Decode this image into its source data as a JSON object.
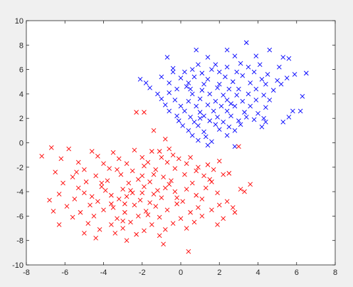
{
  "chart_data": {
    "type": "scatter",
    "title": "",
    "xlabel": "",
    "ylabel": "",
    "xlim": [
      -8,
      8
    ],
    "ylim": [
      -10,
      10
    ],
    "xticks": [
      -8,
      -6,
      -4,
      -2,
      0,
      2,
      4,
      6,
      8
    ],
    "yticks": [
      -10,
      -8,
      -6,
      -4,
      -2,
      0,
      2,
      4,
      6,
      8,
      10
    ],
    "grid": false,
    "legend": "none",
    "marker": "x",
    "series": [
      {
        "color": "#0000ff",
        "points": [
          [
            3.4,
            8.2
          ],
          [
            2.4,
            7.6
          ],
          [
            0.8,
            7.6
          ],
          [
            4.6,
            7.6
          ],
          [
            -0.7,
            7.0
          ],
          [
            1.4,
            7.0
          ],
          [
            2.8,
            7.1
          ],
          [
            3.9,
            7.1
          ],
          [
            5.3,
            7.0
          ],
          [
            5.6,
            6.9
          ],
          [
            0.9,
            6.4
          ],
          [
            1.8,
            6.4
          ],
          [
            3.1,
            6.5
          ],
          [
            4.1,
            6.4
          ],
          [
            -0.4,
            6.1
          ],
          [
            0.6,
            6.0
          ],
          [
            1.6,
            6.0
          ],
          [
            2.4,
            6.2
          ],
          [
            3.5,
            6.2
          ],
          [
            5.1,
            6.2
          ],
          [
            0.2,
            5.8
          ],
          [
            1.1,
            5.7
          ],
          [
            2.0,
            5.8
          ],
          [
            2.9,
            5.8
          ],
          [
            3.8,
            5.8
          ],
          [
            4.5,
            5.6
          ],
          [
            5.9,
            5.6
          ],
          [
            6.5,
            5.7
          ],
          [
            -2.1,
            5.2
          ],
          [
            -1.0,
            5.4
          ],
          [
            0.0,
            5.3
          ],
          [
            0.7,
            5.4
          ],
          [
            1.4,
            5.2
          ],
          [
            2.3,
            5.4
          ],
          [
            3.2,
            5.5
          ],
          [
            4.2,
            5.2
          ],
          [
            5.0,
            5.1
          ],
          [
            5.5,
            5.3
          ],
          [
            -1.8,
            4.9
          ],
          [
            -0.6,
            4.9
          ],
          [
            0.4,
            4.9
          ],
          [
            1.2,
            4.8
          ],
          [
            2.0,
            4.8
          ],
          [
            2.7,
            5.0
          ],
          [
            3.6,
            4.9
          ],
          [
            4.4,
            4.8
          ],
          [
            5.2,
            4.8
          ],
          [
            -1.6,
            4.5
          ],
          [
            -0.2,
            4.4
          ],
          [
            0.5,
            4.4
          ],
          [
            1.1,
            4.3
          ],
          [
            1.9,
            4.5
          ],
          [
            2.5,
            4.4
          ],
          [
            3.0,
            4.4
          ],
          [
            3.9,
            4.4
          ],
          [
            4.8,
            4.3
          ],
          [
            -1.2,
            4.0
          ],
          [
            -0.6,
            4.1
          ],
          [
            0.6,
            4.0
          ],
          [
            1.5,
            4.0
          ],
          [
            2.2,
            3.9
          ],
          [
            2.9,
            3.9
          ],
          [
            3.5,
            4.0
          ],
          [
            4.3,
            3.9
          ],
          [
            6.3,
            3.8
          ],
          [
            -1.0,
            3.6
          ],
          [
            -0.3,
            3.5
          ],
          [
            0.4,
            3.4
          ],
          [
            1.0,
            3.6
          ],
          [
            1.8,
            3.4
          ],
          [
            2.4,
            3.5
          ],
          [
            3.2,
            3.4
          ],
          [
            3.9,
            3.5
          ],
          [
            4.6,
            3.5
          ],
          [
            -0.8,
            3.1
          ],
          [
            0.0,
            3.0
          ],
          [
            0.8,
            3.0
          ],
          [
            1.4,
            3.1
          ],
          [
            2.1,
            3.0
          ],
          [
            2.8,
            3.0
          ],
          [
            3.6,
            3.0
          ],
          [
            4.4,
            2.9
          ],
          [
            -0.6,
            2.6
          ],
          [
            0.2,
            2.6
          ],
          [
            1.0,
            2.5
          ],
          [
            1.7,
            2.6
          ],
          [
            2.4,
            2.6
          ],
          [
            3.3,
            2.5
          ],
          [
            4.0,
            2.4
          ],
          [
            5.8,
            2.6
          ],
          [
            6.2,
            2.6
          ],
          [
            -0.2,
            2.2
          ],
          [
            0.5,
            2.1
          ],
          [
            1.2,
            2.2
          ],
          [
            1.9,
            2.1
          ],
          [
            2.6,
            2.2
          ],
          [
            3.4,
            2.1
          ],
          [
            4.3,
            2.0
          ],
          [
            5.6,
            2.1
          ],
          [
            -0.1,
            1.8
          ],
          [
            0.7,
            1.7
          ],
          [
            1.5,
            1.8
          ],
          [
            2.2,
            1.7
          ],
          [
            3.0,
            1.8
          ],
          [
            3.8,
            1.9
          ],
          [
            4.4,
            1.7
          ],
          [
            5.3,
            1.7
          ],
          [
            0.1,
            1.4
          ],
          [
            0.9,
            1.4
          ],
          [
            1.8,
            1.5
          ],
          [
            2.5,
            1.3
          ],
          [
            3.1,
            1.5
          ],
          [
            4.2,
            1.3
          ],
          [
            0.4,
            1.0
          ],
          [
            1.2,
            0.9
          ],
          [
            2.0,
            1.1
          ],
          [
            2.8,
            1.0
          ],
          [
            0.6,
            0.6
          ],
          [
            1.3,
            0.5
          ],
          [
            2.4,
            0.6
          ],
          [
            0.9,
            0.2
          ],
          [
            1.6,
            0.1
          ],
          [
            2.8,
            -0.3
          ],
          [
            1.4,
            -0.2
          ],
          [
            -0.4,
            5.8
          ],
          [
            0.3,
            4.6
          ],
          [
            2.6,
            3.2
          ],
          [
            1.0,
            2.0
          ]
        ]
      },
      {
        "color": "#ff0000",
        "points": [
          [
            -2.3,
            2.5
          ],
          [
            -1.9,
            2.5
          ],
          [
            -1.4,
            1.0
          ],
          [
            -0.8,
            0.3
          ],
          [
            -0.6,
            -0.5
          ],
          [
            -1.1,
            -0.7
          ],
          [
            -0.4,
            -1.0
          ],
          [
            3.0,
            -0.3
          ],
          [
            -6.7,
            -0.4
          ],
          [
            -5.8,
            -0.5
          ],
          [
            -4.6,
            -0.7
          ],
          [
            -3.5,
            -0.8
          ],
          [
            -2.4,
            -0.6
          ],
          [
            -1.5,
            -0.7
          ],
          [
            -6.2,
            -1.3
          ],
          [
            -4.3,
            -1.1
          ],
          [
            -3.2,
            -1.3
          ],
          [
            -2.0,
            -1.2
          ],
          [
            -1.0,
            -1.2
          ],
          [
            -0.1,
            -1.3
          ],
          [
            0.5,
            -1.2
          ],
          [
            -7.2,
            -1.1
          ],
          [
            -5.3,
            -1.6
          ],
          [
            -4.0,
            -1.7
          ],
          [
            -2.8,
            -1.7
          ],
          [
            -1.7,
            -1.6
          ],
          [
            -0.7,
            -1.6
          ],
          [
            0.3,
            -1.7
          ],
          [
            1.4,
            -1.8
          ],
          [
            2.0,
            -1.5
          ],
          [
            -6.5,
            -2.4
          ],
          [
            -5.0,
            -2.2
          ],
          [
            -3.7,
            -2.1
          ],
          [
            -2.5,
            -2.3
          ],
          [
            -1.3,
            -2.2
          ],
          [
            -0.3,
            -2.1
          ],
          [
            0.8,
            -2.3
          ],
          [
            1.7,
            -2.2
          ],
          [
            2.5,
            -2.5
          ],
          [
            -5.6,
            -2.8
          ],
          [
            -4.4,
            -2.7
          ],
          [
            -3.1,
            -2.6
          ],
          [
            -2.0,
            -2.7
          ],
          [
            -0.9,
            -2.8
          ],
          [
            0.2,
            -2.6
          ],
          [
            1.2,
            -2.7
          ],
          [
            2.2,
            -2.6
          ],
          [
            -6.1,
            -3.3
          ],
          [
            -4.9,
            -3.2
          ],
          [
            -3.8,
            -3.1
          ],
          [
            -2.7,
            -3.3
          ],
          [
            -1.6,
            -3.2
          ],
          [
            -0.5,
            -3.1
          ],
          [
            0.6,
            -3.3
          ],
          [
            1.6,
            -3.2
          ],
          [
            -5.3,
            -3.7
          ],
          [
            -4.1,
            -3.6
          ],
          [
            -3.0,
            -3.8
          ],
          [
            -1.9,
            -3.6
          ],
          [
            -0.8,
            -3.7
          ],
          [
            0.3,
            -3.8
          ],
          [
            1.3,
            -3.7
          ],
          [
            3.1,
            -3.8
          ],
          [
            3.6,
            -3.4
          ],
          [
            -6.3,
            -4.2
          ],
          [
            -5.0,
            -4.1
          ],
          [
            -3.6,
            -4.3
          ],
          [
            -2.5,
            -4.1
          ],
          [
            -1.4,
            -4.2
          ],
          [
            -0.3,
            -4.0
          ],
          [
            0.8,
            -4.3
          ],
          [
            1.9,
            -4.1
          ],
          [
            3.3,
            -4.0
          ],
          [
            -6.8,
            -4.7
          ],
          [
            -5.5,
            -4.6
          ],
          [
            -4.3,
            -4.8
          ],
          [
            -3.2,
            -4.6
          ],
          [
            -2.1,
            -4.7
          ],
          [
            -1.0,
            -4.5
          ],
          [
            0.1,
            -4.8
          ],
          [
            1.1,
            -4.6
          ],
          [
            2.4,
            -4.8
          ],
          [
            -5.9,
            -5.2
          ],
          [
            -4.7,
            -5.1
          ],
          [
            -3.5,
            -5.3
          ],
          [
            -2.4,
            -5.1
          ],
          [
            -1.3,
            -5.2
          ],
          [
            -0.2,
            -5.0
          ],
          [
            0.9,
            -5.3
          ],
          [
            2.0,
            -5.1
          ],
          [
            2.7,
            -5.3
          ],
          [
            -6.6,
            -5.6
          ],
          [
            -5.2,
            -5.7
          ],
          [
            -4.0,
            -5.5
          ],
          [
            -2.9,
            -5.7
          ],
          [
            -1.8,
            -5.6
          ],
          [
            -0.7,
            -5.5
          ],
          [
            0.5,
            -5.7
          ],
          [
            1.6,
            -5.5
          ],
          [
            2.8,
            -5.7
          ],
          [
            -5.6,
            -6.1
          ],
          [
            -4.5,
            -6.0
          ],
          [
            -3.3,
            -6.2
          ],
          [
            -2.2,
            -6.0
          ],
          [
            -1.1,
            -6.1
          ],
          [
            0.0,
            -6.2
          ],
          [
            1.1,
            -6.0
          ],
          [
            2.2,
            -6.2
          ],
          [
            -4.8,
            -6.6
          ],
          [
            -3.6,
            -6.7
          ],
          [
            -2.6,
            -6.5
          ],
          [
            -1.5,
            -6.7
          ],
          [
            -0.4,
            -6.6
          ],
          [
            0.7,
            -6.5
          ],
          [
            1.9,
            -6.7
          ],
          [
            -4.2,
            -7.1
          ],
          [
            -3.0,
            -7.0
          ],
          [
            -1.9,
            -7.2
          ],
          [
            -0.8,
            -7.1
          ],
          [
            0.3,
            -7.0
          ],
          [
            -3.4,
            -7.4
          ],
          [
            -2.3,
            -7.5
          ],
          [
            -1.1,
            -7.6
          ],
          [
            -2.8,
            -8.0
          ],
          [
            -0.9,
            -8.3
          ],
          [
            0.4,
            -8.9
          ],
          [
            -6.3,
            -6.7
          ],
          [
            -5.0,
            -7.4
          ],
          [
            -4.4,
            -7.8
          ],
          [
            -3.9,
            -3.9
          ],
          [
            -2.8,
            -4.4
          ],
          [
            -1.6,
            -4.9
          ],
          [
            -0.6,
            -3.4
          ],
          [
            -3.3,
            -2.2
          ],
          [
            -2.2,
            -3.0
          ],
          [
            -1.2,
            -3.9
          ],
          [
            -4.6,
            -4.4
          ],
          [
            -2.9,
            -5.0
          ],
          [
            -1.7,
            -5.9
          ],
          [
            -0.2,
            -4.5
          ],
          [
            1.5,
            -3.0
          ],
          [
            -5.4,
            -2.4
          ],
          [
            -3.0,
            -6.4
          ],
          [
            -2.0,
            -4.1
          ],
          [
            -3.6,
            -5.0
          ],
          [
            -1.4,
            -2.6
          ],
          [
            0.9,
            -2.0
          ],
          [
            -4.1,
            -3.3
          ],
          [
            -2.6,
            -3.9
          ],
          [
            -1.9,
            -1.9
          ]
        ]
      }
    ]
  }
}
